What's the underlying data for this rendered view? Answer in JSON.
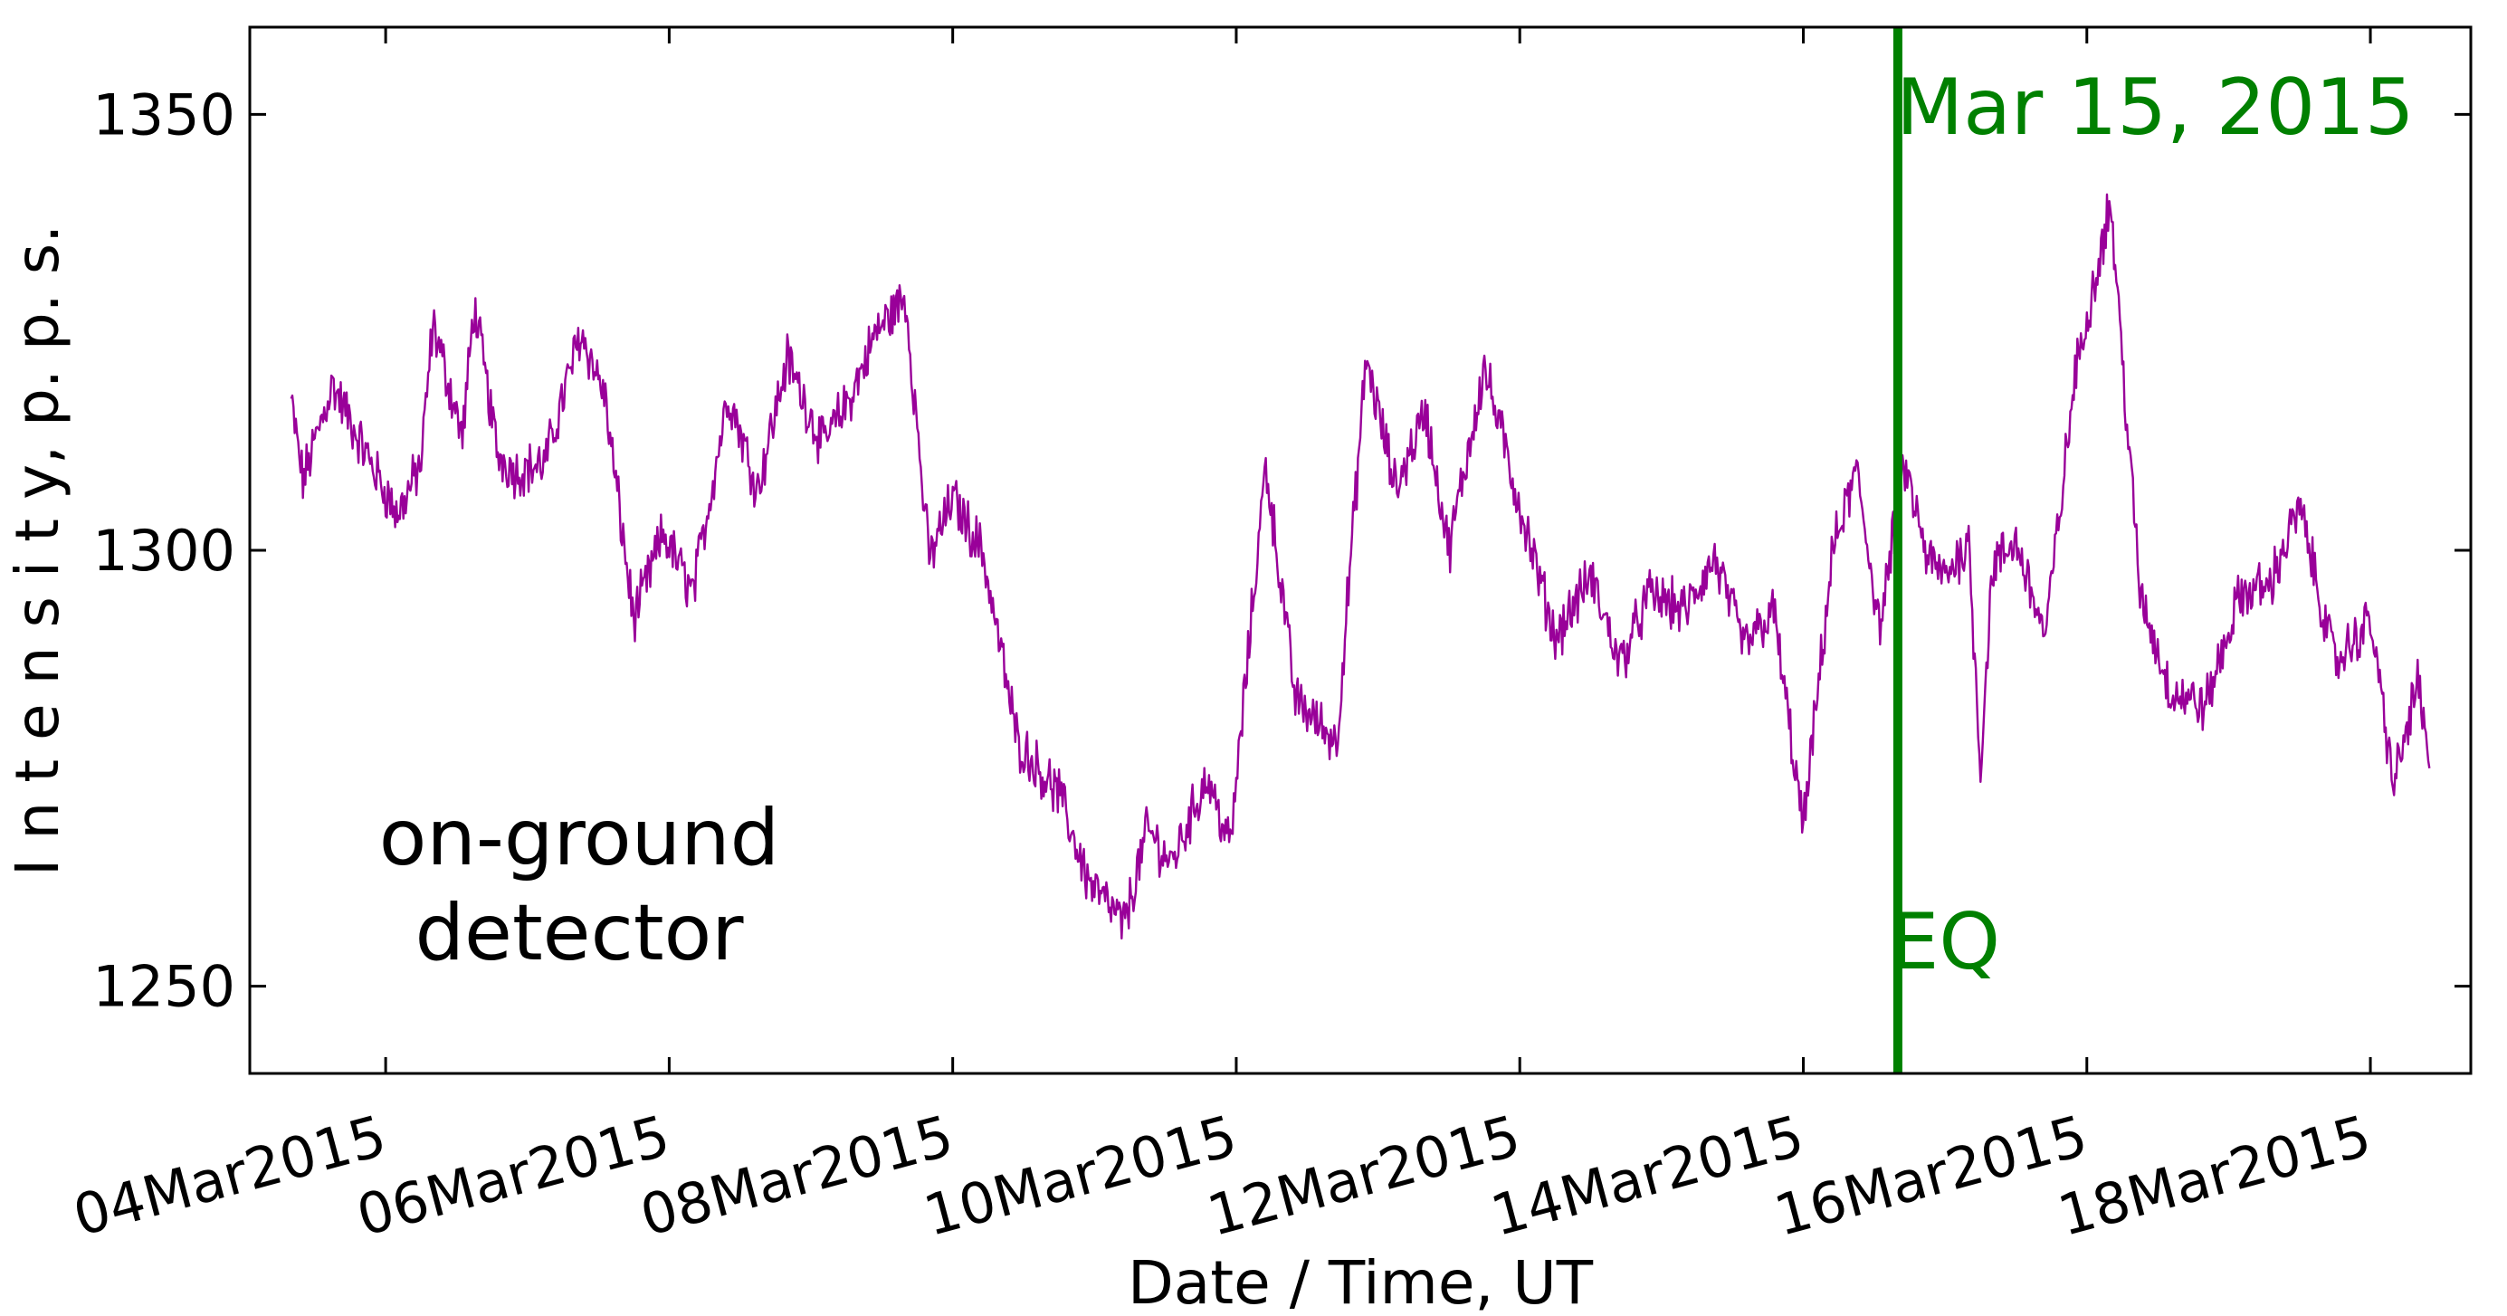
{
  "chart_data": {
    "type": "line",
    "xlabel": "Date / Time, UT",
    "ylabel": "I n t e n s i t y,   p. p. s.",
    "x_range": [
      "2015-03-03T01:00",
      "2015-03-18T17:00"
    ],
    "ylim": [
      1240,
      1360
    ],
    "x_ticks": [
      {
        "date": "2015-03-04",
        "label": "04Mar2015"
      },
      {
        "date": "2015-03-06",
        "label": "06Mar2015"
      },
      {
        "date": "2015-03-08",
        "label": "08Mar2015"
      },
      {
        "date": "2015-03-10",
        "label": "10Mar2015"
      },
      {
        "date": "2015-03-12",
        "label": "12Mar2015"
      },
      {
        "date": "2015-03-14",
        "label": "14Mar2015"
      },
      {
        "date": "2015-03-16",
        "label": "16Mar2015"
      },
      {
        "date": "2015-03-18",
        "label": "18Mar2015"
      }
    ],
    "y_ticks": [
      1250,
      1300,
      1350
    ],
    "grid": false,
    "series": [
      {
        "color": "#990099",
        "x": [
          "2015-03-03T08:00",
          "2015-03-03T10:00",
          "2015-03-03T15:00",
          "2015-03-03T20:00",
          "2015-03-04T02:00",
          "2015-03-04T06:00",
          "2015-03-04T08:00",
          "2015-03-04T13:00",
          "2015-03-04T15:00",
          "2015-03-04T19:00",
          "2015-03-04T22:00",
          "2015-03-05T03:00",
          "2015-03-05T09:00",
          "2015-03-05T13:00",
          "2015-03-05T18:00",
          "2015-03-05T23:00",
          "2015-03-06T04:00",
          "2015-03-06T10:00",
          "2015-03-06T15:00",
          "2015-03-06T20:00",
          "2015-03-07T02:00",
          "2015-03-07T07:00",
          "2015-03-07T11:00",
          "2015-03-07T16:00",
          "2015-03-07T20:00",
          "2015-03-08T00:00",
          "2015-03-08T05:00",
          "2015-03-08T11:00",
          "2015-03-08T18:00",
          "2015-03-08T23:00",
          "2015-03-09T05:00",
          "2015-03-09T09:00",
          "2015-03-09T13:00",
          "2015-03-09T19:00",
          "2015-03-09T23:00",
          "2015-03-10T05:00",
          "2015-03-10T10:00",
          "2015-03-10T17:00",
          "2015-03-10T22:00",
          "2015-03-11T03:00",
          "2015-03-11T08:00",
          "2015-03-11T12:00",
          "2015-03-11T18:00",
          "2015-03-12T00:00",
          "2015-03-12T06:00",
          "2015-03-12T12:00",
          "2015-03-12T17:00",
          "2015-03-12T22:00",
          "2015-03-13T04:00",
          "2015-03-13T09:00",
          "2015-03-13T14:00",
          "2015-03-13T19:00",
          "2015-03-14T00:00",
          "2015-03-14T05:00",
          "2015-03-14T09:00",
          "2015-03-14T13:00",
          "2015-03-14T17:00",
          "2015-03-14T21:00",
          "2015-03-15T00:00",
          "2015-03-15T04:00",
          "2015-03-15T06:00",
          "2015-03-15T08:00",
          "2015-03-15T12:00",
          "2015-03-15T17:00",
          "2015-03-15T22:00",
          "2015-03-16T04:00",
          "2015-03-16T09:00",
          "2015-03-16T14:00",
          "2015-03-16T20:00",
          "2015-03-17T02:00",
          "2015-03-17T07:00",
          "2015-03-17T12:00",
          "2015-03-17T18:00",
          "2015-03-18T00:00",
          "2015-03-18T04:00",
          "2015-03-18T08:00",
          "2015-03-18T10:00"
        ],
        "y": [
          1317,
          1308,
          1319,
          1312,
          1304,
          1310,
          1326,
          1313,
          1328,
          1311,
          1309,
          1310,
          1325,
          1318,
          1292,
          1302,
          1295,
          1318,
          1307,
          1322,
          1312,
          1318,
          1325,
          1329,
          1299,
          1306,
          1300,
          1278,
          1272,
          1262,
          1257,
          1268,
          1264,
          1274,
          1266,
          1310,
          1283,
          1278,
          1322,
          1307,
          1316,
          1300,
          1321,
          1305,
          1290,
          1297,
          1287,
          1295,
          1293,
          1299,
          1289,
          1293,
          1268,
          1300,
          1309,
          1291,
          1310,
          1299,
          1297,
          1301,
          1275,
          1298,
          1301,
          1290,
          1320,
          1340,
          1295,
          1284,
          1282,
          1295,
          1296,
          1305,
          1287,
          1292,
          1273,
          1285,
          1275
        ]
      }
    ],
    "annotations": [
      {
        "text": "on-ground",
        "color": "#000000"
      },
      {
        "text": "detector",
        "color": "#000000"
      },
      {
        "text": "Mar 15, 2015",
        "color": "#008000"
      },
      {
        "text": "EQ",
        "color": "#008000"
      }
    ],
    "event_line": {
      "date": "2015-03-14T16:00",
      "color": "#008000"
    }
  }
}
